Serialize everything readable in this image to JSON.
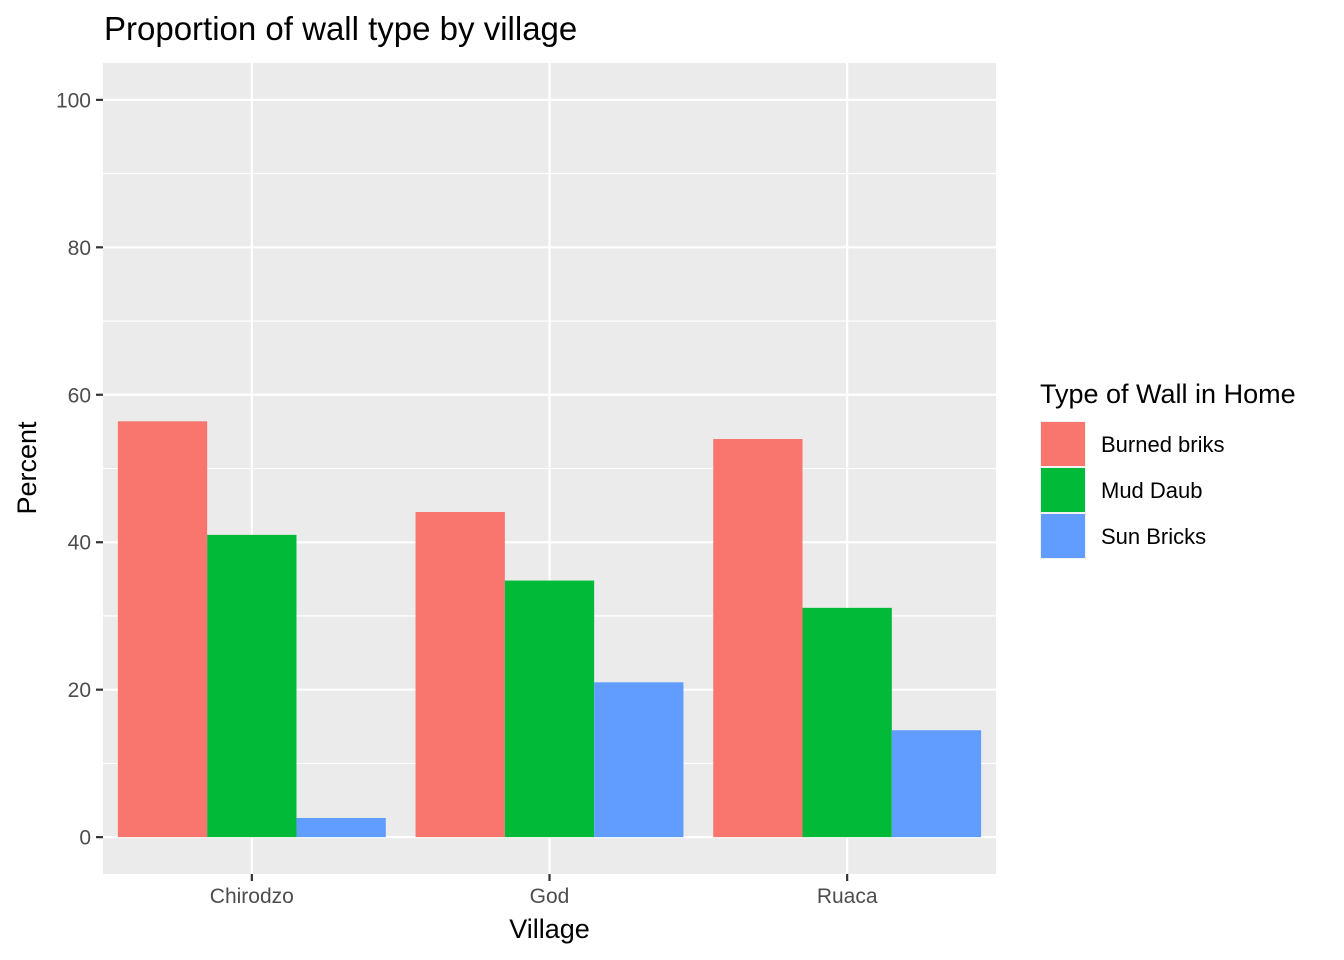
{
  "chart_data": {
    "type": "bar",
    "title": "Proportion of wall type by village",
    "xlabel": "Village",
    "ylabel": "Percent",
    "categories": [
      "Chirodzo",
      "God",
      "Ruaca"
    ],
    "ylim": [
      -5,
      105
    ],
    "yticks": [
      0,
      20,
      40,
      60,
      80,
      100
    ],
    "grid": true,
    "legend": {
      "title": "Type of Wall in Home",
      "position": "right"
    },
    "series": [
      {
        "name": "Burned briks",
        "color": "#F8766D",
        "values": [
          56.4,
          44.1,
          54.0
        ]
      },
      {
        "name": "Mud Daub",
        "color": "#00BA38",
        "values": [
          41.0,
          34.8,
          31.1
        ]
      },
      {
        "name": "Sun Bricks",
        "color": "#619CFF",
        "values": [
          2.6,
          21.0,
          14.5
        ]
      }
    ],
    "colors": {
      "panel_background": "#EBEBEB",
      "grid_major": "#FFFFFF",
      "tick_label": "#4D4D4D"
    }
  }
}
